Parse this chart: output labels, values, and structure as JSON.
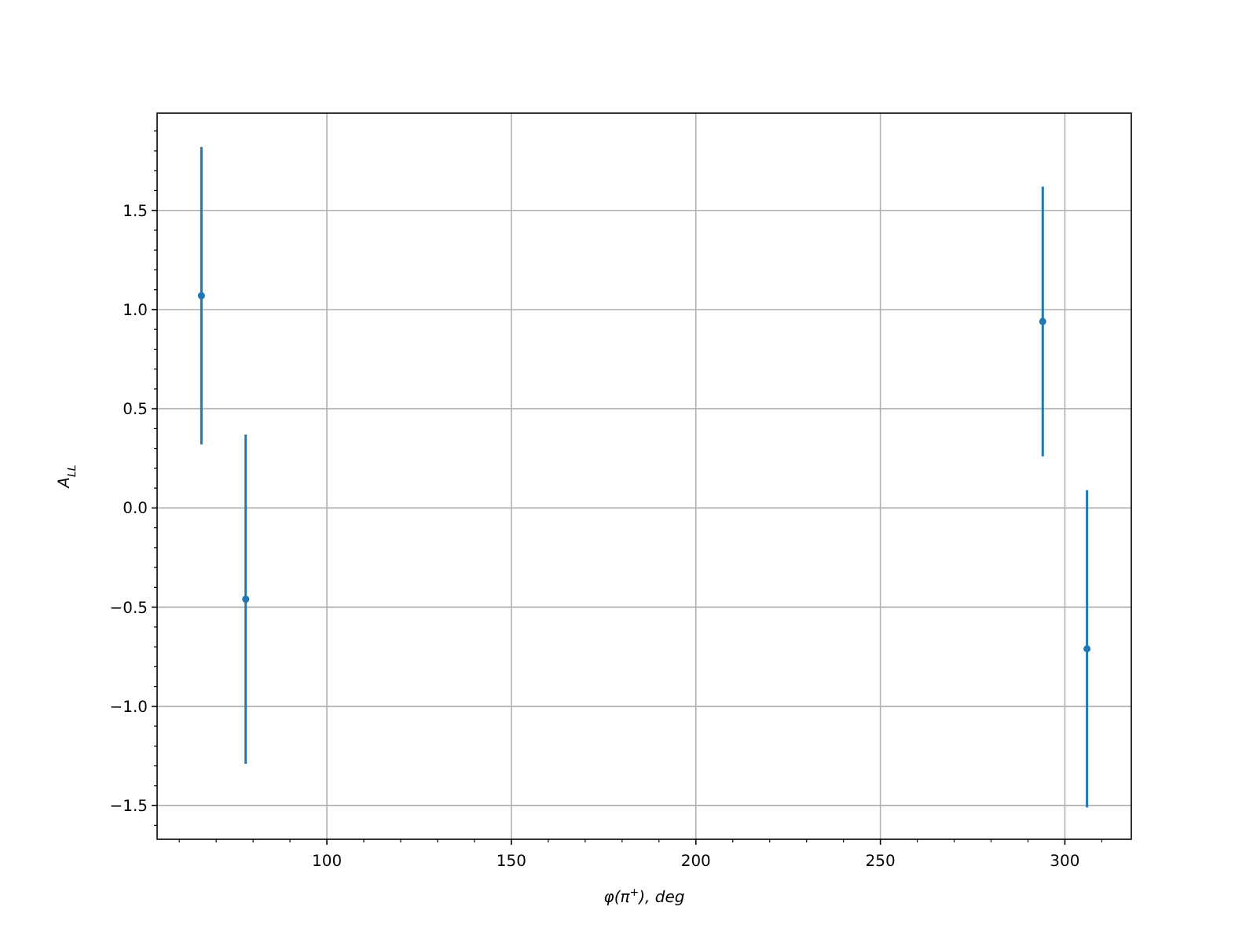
{
  "chart_data": {
    "type": "scatter",
    "xlabel": "φ(π$^{+}$), deg",
    "ylabel": "A$_{LL}$",
    "x": [
      66,
      78,
      294,
      306
    ],
    "series": [
      {
        "color": "#1f77b4",
        "values": [
          1.07,
          -0.46,
          0.94,
          -0.71
        ],
        "errors": [
          0.75,
          0.83,
          0.68,
          0.8
        ]
      }
    ],
    "xlim": [
      54,
      318
    ],
    "xticks": [
      100,
      150,
      200,
      250,
      300
    ],
    "ylim": [
      -1.67,
      1.99
    ],
    "yticks": [
      {
        "value": -1.5,
        "label": "−1.5"
      },
      {
        "value": -1.0,
        "label": "−1.0"
      },
      {
        "value": -0.5,
        "label": "−0.5"
      },
      {
        "value": 0,
        "label": "0.0"
      },
      {
        "value": 0.5,
        "label": "0.5"
      },
      {
        "value": 1.0,
        "label": "1.0"
      },
      {
        "value": 1.5,
        "label": "1.5"
      }
    ],
    "grid": true,
    "marker": "circle",
    "line_style": "none"
  }
}
